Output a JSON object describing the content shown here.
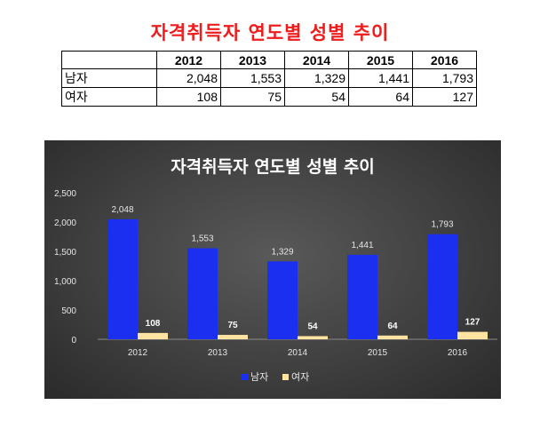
{
  "title": "자격취득자 연도별 성별 추이",
  "table": {
    "headers": [
      "",
      "2012",
      "2013",
      "2014",
      "2015",
      "2016"
    ],
    "rows": [
      {
        "label": "남자",
        "values": [
          "2,048",
          "1,553",
          "1,329",
          "1,441",
          "1,793"
        ]
      },
      {
        "label": "여자",
        "values": [
          "108",
          "75",
          "54",
          "64",
          "127"
        ]
      }
    ]
  },
  "chart_data": {
    "type": "bar",
    "title": "자격취득자 연도별 성별 추이",
    "categories": [
      "2012",
      "2013",
      "2014",
      "2015",
      "2016"
    ],
    "series": [
      {
        "name": "남자",
        "values": [
          2048,
          1553,
          1329,
          1441,
          1793
        ],
        "labels": [
          "2,048",
          "1,553",
          "1,329",
          "1,441",
          "1,793"
        ],
        "color": "#1a2ff0"
      },
      {
        "name": "여자",
        "values": [
          108,
          75,
          54,
          64,
          127
        ],
        "labels": [
          "108",
          "75",
          "54",
          "64",
          "127"
        ],
        "color": "#ffe3a1"
      }
    ],
    "ylim": [
      0,
      2500
    ],
    "yticks": [
      "0",
      "500",
      "1,000",
      "1,500",
      "2,000",
      "2,500"
    ],
    "ytick_values": [
      0,
      500,
      1000,
      1500,
      2000,
      2500
    ],
    "grid": false,
    "legend": "bottom",
    "background": "#404040"
  }
}
